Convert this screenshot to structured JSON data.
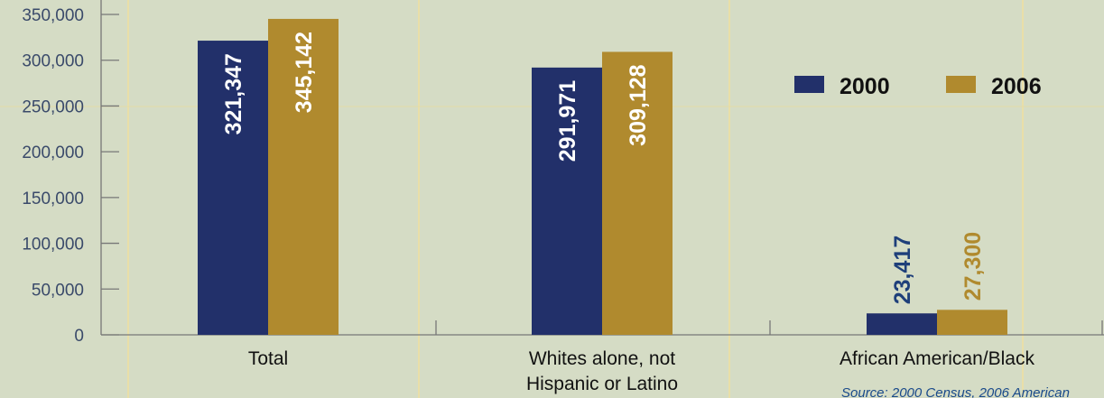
{
  "chart_data": {
    "type": "bar",
    "categories": [
      "Total",
      "Whites alone, not\nHispanic or Latino",
      "African American/Black"
    ],
    "series": [
      {
        "name": "2000",
        "values": [
          321347,
          291971,
          23417
        ],
        "labels": [
          "321,347",
          "291,971",
          "23,417"
        ]
      },
      {
        "name": "2006",
        "values": [
          345142,
          309128,
          27300
        ],
        "labels": [
          "345,142",
          "309,128",
          "27,300"
        ]
      }
    ],
    "yticks": [
      "0",
      "50,000",
      "100,000",
      "150,000",
      "200,000",
      "250,000",
      "300,000",
      "350,000"
    ],
    "ylim": [
      0,
      350000
    ],
    "legend_position": "top-right",
    "colors": {
      "2000": "#22306a",
      "2006": "#b08a2e",
      "label_2000_outside": "#1e3f7a",
      "label_2006_outside": "#b08a2e"
    },
    "title": "",
    "source": "Source: 2000 Census, 2006 American"
  }
}
